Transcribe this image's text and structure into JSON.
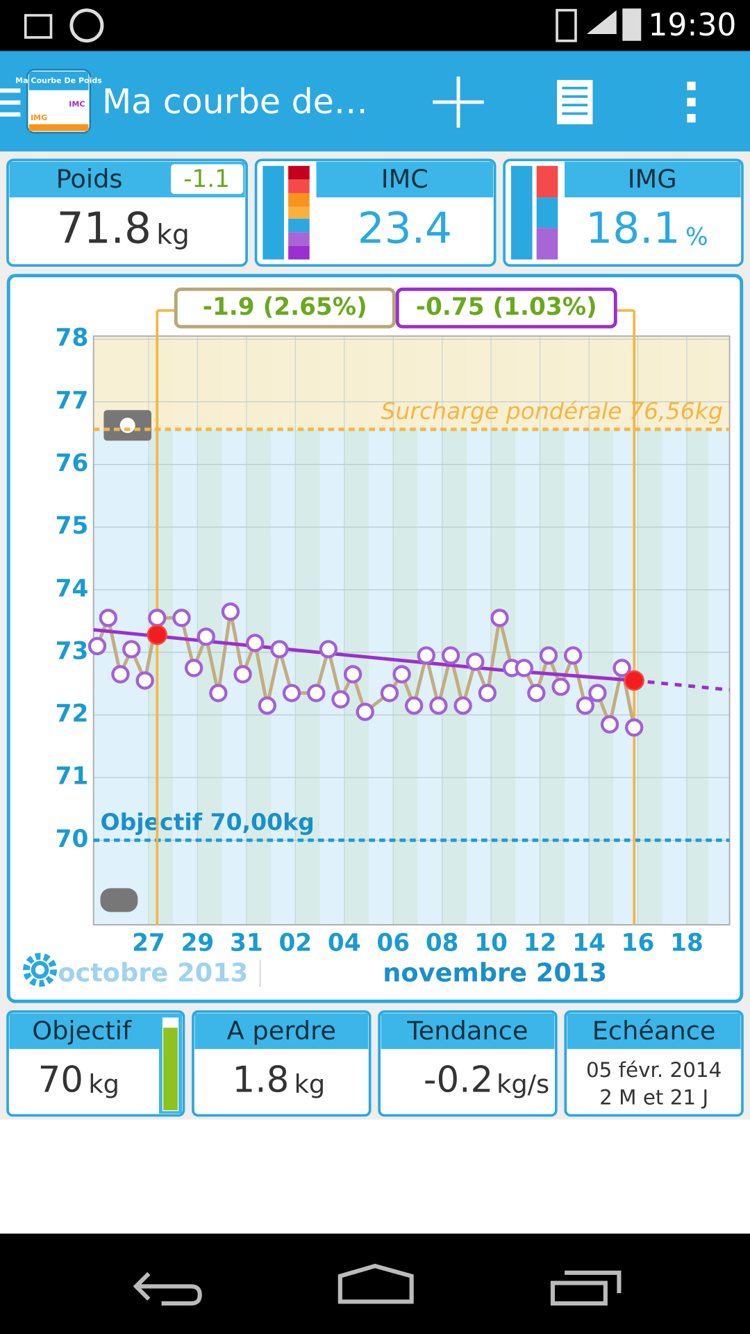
{
  "status_bar": {
    "time": "19:30"
  },
  "app_bar": {
    "title": "Ma courbe de…",
    "app_icon": {
      "title": "Ma Courbe De Poids",
      "labels": [
        "IMC",
        "IMG"
      ]
    }
  },
  "summary": {
    "weight": {
      "label": "Poids",
      "change": -1.1,
      "value": 71.8,
      "unit": "kg"
    },
    "bmi": {
      "label": "IMC",
      "value": 23.4
    },
    "body_fat": {
      "label": "IMG",
      "value": 18.1,
      "unit": "%"
    }
  },
  "chart_data": {
    "type": "line",
    "xlim": [
      -2.25,
      23.75
    ],
    "xticks": [
      {
        "value": 0,
        "label": "27"
      },
      {
        "value": 2,
        "label": "29"
      },
      {
        "value": 4,
        "label": "31"
      },
      {
        "value": 6,
        "label": "02"
      },
      {
        "value": 8,
        "label": "04"
      },
      {
        "value": 10,
        "label": "06"
      },
      {
        "value": 12,
        "label": "08"
      },
      {
        "value": 14,
        "label": "10"
      },
      {
        "value": 16,
        "label": "12"
      },
      {
        "value": 18,
        "label": "14"
      },
      {
        "value": 20,
        "label": "16"
      },
      {
        "value": 22,
        "label": "18"
      }
    ],
    "month_labels": [
      "octobre 2013",
      "novembre 2013"
    ],
    "ylim": [
      68.65,
      78.05
    ],
    "yticks": [
      70,
      71,
      72,
      73,
      74,
      75,
      76,
      77,
      78
    ],
    "grid": true,
    "series": [
      {
        "color": "#c2ad80",
        "marker_color": "#a35fd6",
        "x": [
          -2.1,
          -1.65,
          -1.15,
          -0.7,
          -0.15,
          0.35,
          1.35,
          1.85,
          2.35,
          2.85,
          3.35,
          3.85,
          4.35,
          4.85,
          5.35,
          5.85,
          6.85,
          7.35,
          7.85,
          8.35,
          8.85,
          9.85,
          10.35,
          10.85,
          11.35,
          11.85,
          12.35,
          12.85,
          13.35,
          13.85,
          14.35,
          14.85,
          15.35,
          15.85,
          16.35,
          16.85,
          17.35,
          17.85,
          18.35,
          18.85,
          19.35,
          19.85
        ],
        "values": [
          73.1,
          73.55,
          72.65,
          73.05,
          72.55,
          73.55,
          73.55,
          72.75,
          73.25,
          72.35,
          73.65,
          72.65,
          73.15,
          72.15,
          73.05,
          72.35,
          72.35,
          73.05,
          72.25,
          72.65,
          72.05,
          72.35,
          72.65,
          72.15,
          72.95,
          72.15,
          72.95,
          72.15,
          72.85,
          72.35,
          73.55,
          72.75,
          72.75,
          72.35,
          72.95,
          72.45,
          72.95,
          72.15,
          72.35,
          71.85,
          72.75,
          71.8
        ]
      },
      {
        "color": "#9b2fd0",
        "x": [
          -2.25,
          4.35,
          10.35,
          14.35,
          19.85
        ],
        "values": [
          73.36,
          73.1,
          72.87,
          72.72,
          72.55
        ]
      },
      {
        "color": "#9b2fd0",
        "dashed": true,
        "x": [
          19.85,
          23.75
        ],
        "values": [
          72.55,
          72.4
        ]
      }
    ],
    "markers": {
      "color": "#f5b642",
      "point_color": "#f01e1e",
      "x": [
        0.35,
        19.85
      ],
      "values": [
        73.28,
        72.55
      ]
    },
    "comparisons": [
      {
        "label": "-1.9 (2.65%)",
        "color": "#b8a878"
      },
      {
        "label": "-0.75 (1.03%)",
        "color": "#9b2fd0"
      }
    ],
    "reference_lines": [
      {
        "label": "Surcharge pondérale 76,56kg",
        "value": 76.56,
        "color": "#f5b642",
        "zone_color": "#fbefcf"
      },
      {
        "label": "Objectif 70,00kg",
        "value": 70,
        "color": "#1e9bd7"
      }
    ]
  },
  "stats": [
    {
      "label": "Objectif",
      "value": 70,
      "unit": "kg"
    },
    {
      "label": "A perdre",
      "value": 1.8,
      "unit": "kg"
    },
    {
      "label": "Tendance",
      "value": -0.2,
      "unit": "kg/s"
    },
    {
      "label": "Echéance",
      "lines": [
        "05 févr. 2014",
        "2 M et 21 J"
      ]
    }
  ]
}
